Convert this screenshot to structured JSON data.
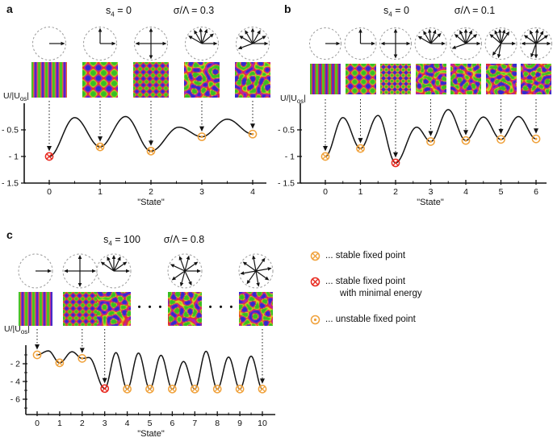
{
  "colors": {
    "stable": "#f0a13a",
    "stable_min": "#e8281e",
    "unstable": "#f0a13a",
    "curve": "#141414",
    "axis": "#141414",
    "mode_arrow": "#141414",
    "dashed_circle": "#999999"
  },
  "legend": {
    "items": [
      {
        "symbol": "stable",
        "label_lines": [
          "... stable fixed point"
        ]
      },
      {
        "symbol": "stable_min",
        "label_lines": [
          "... stable fixed point",
          "with minimal energy"
        ]
      },
      {
        "symbol": "unstable",
        "label_lines": [
          "... unstable fixed point"
        ]
      }
    ]
  },
  "chart_data": [
    {
      "id": "a",
      "panel_label": "a",
      "type": "line",
      "title_s4": {
        "pre": "s",
        "sub": "4",
        "post": " = 0"
      },
      "title_sigma": "σ/Λ = 0.3",
      "xlabel": "\"State\"",
      "ylabel": {
        "pre": "U/|U",
        "sub": "os",
        "post": "|"
      },
      "x_states": [
        0,
        1,
        2,
        3,
        4
      ],
      "ylim": [
        -1.5,
        0
      ],
      "yticks": [
        {
          "value": -0.5,
          "label": "- 0.5"
        },
        {
          "value": -1,
          "label": "- 1"
        },
        {
          "value": -1.5,
          "label": "- 1.5"
        }
      ],
      "extrema": [
        [
          0,
          -1.0
        ],
        [
          0.5,
          -0.27
        ],
        [
          1,
          -0.82
        ],
        [
          1.5,
          -0.25
        ],
        [
          2,
          -0.9
        ],
        [
          2.55,
          -0.45
        ],
        [
          3,
          -0.63
        ],
        [
          3.5,
          -0.3
        ],
        [
          4,
          -0.58
        ]
      ],
      "minima": [
        -1.0,
        -0.82,
        -0.9,
        -0.63,
        -0.58
      ],
      "markers": [
        {
          "state": 0,
          "type": "stable_min"
        },
        {
          "state": 1,
          "type": "stable"
        },
        {
          "state": 2,
          "type": "stable"
        },
        {
          "state": 3,
          "type": "unstable"
        },
        {
          "state": 4,
          "type": "unstable"
        }
      ],
      "arrows_to_states": [
        0,
        1,
        2,
        3,
        4
      ],
      "columns": [
        {
          "modes_deg": [
            0
          ],
          "wavelength": 9,
          "seed": 1,
          "pattern": "stripes"
        },
        {
          "modes_deg": [
            90,
            0
          ],
          "wavelength": 13,
          "seed": 2,
          "pattern": "squares"
        },
        {
          "modes_deg": [
            0,
            90,
            180,
            270
          ],
          "wavelength": 8,
          "seed": 3,
          "pattern": "squares-fine"
        },
        {
          "modes_deg": [
            0,
            40,
            70,
            95,
            120,
            150
          ],
          "wavelength": 10,
          "seed": 4,
          "pattern": "quasipattern"
        },
        {
          "modes_deg": [
            0,
            30,
            60,
            90,
            120,
            150,
            200
          ],
          "wavelength": 10,
          "seed": 5,
          "pattern": "quasipattern"
        }
      ]
    },
    {
      "id": "b",
      "panel_label": "b",
      "type": "line",
      "title_s4": {
        "pre": "s",
        "sub": "4",
        "post": " = 0"
      },
      "title_sigma": "σ/Λ = 0.1",
      "xlabel": "\"State\"",
      "ylabel": {
        "pre": "U/|U",
        "sub": "os",
        "post": "|"
      },
      "x_states": [
        0,
        1,
        2,
        3,
        4,
        5,
        6
      ],
      "ylim": [
        -1.5,
        0
      ],
      "yticks": [
        {
          "value": -0.5,
          "label": "- 0.5"
        },
        {
          "value": -1,
          "label": "- 1"
        },
        {
          "value": -1.5,
          "label": "- 1.5"
        }
      ],
      "extrema": [
        [
          0,
          -1.0
        ],
        [
          0.5,
          -0.27
        ],
        [
          1,
          -0.85
        ],
        [
          1.5,
          -0.23
        ],
        [
          2,
          -1.12
        ],
        [
          2.6,
          -0.45
        ],
        [
          3,
          -0.72
        ],
        [
          3.5,
          -0.12
        ],
        [
          4,
          -0.7
        ],
        [
          4.5,
          -0.26
        ],
        [
          5,
          -0.68
        ],
        [
          5.5,
          -0.25
        ],
        [
          6,
          -0.67
        ]
      ],
      "minima": [
        -1.0,
        -0.85,
        -1.12,
        -0.72,
        -0.7,
        -0.68,
        -0.67
      ],
      "markers": [
        {
          "state": 0,
          "type": "stable"
        },
        {
          "state": 1,
          "type": "stable"
        },
        {
          "state": 2,
          "type": "stable_min"
        },
        {
          "state": 3,
          "type": "unstable"
        },
        {
          "state": 4,
          "type": "unstable"
        },
        {
          "state": 5,
          "type": "unstable"
        },
        {
          "state": 6,
          "type": "unstable"
        }
      ],
      "arrows_to_states": [
        0,
        1,
        2,
        3,
        4,
        5,
        6
      ],
      "columns": [
        {
          "modes_deg": [
            0
          ],
          "wavelength": 8,
          "seed": 1,
          "pattern": "stripes"
        },
        {
          "modes_deg": [
            90,
            0
          ],
          "wavelength": 11,
          "seed": 2,
          "pattern": "squares"
        },
        {
          "modes_deg": [
            0,
            90,
            180,
            270
          ],
          "wavelength": 7,
          "seed": 3,
          "pattern": "squares-fine"
        },
        {
          "modes_deg": [
            0,
            45,
            70,
            95,
            120,
            150
          ],
          "wavelength": 9,
          "seed": 6,
          "pattern": "quasipattern"
        },
        {
          "modes_deg": [
            0,
            40,
            65,
            90,
            115,
            140,
            200
          ],
          "wavelength": 9,
          "seed": 7,
          "pattern": "quasipattern"
        },
        {
          "modes_deg": [
            0,
            55,
            75,
            95,
            115,
            140,
            235,
            260
          ],
          "wavelength": 9,
          "seed": 8,
          "pattern": "quasipattern"
        },
        {
          "modes_deg": [
            0,
            35,
            60,
            85,
            115,
            145,
            180,
            250,
            270
          ],
          "wavelength": 9,
          "seed": 9,
          "pattern": "quasipattern"
        }
      ]
    },
    {
      "id": "c",
      "panel_label": "c",
      "type": "line",
      "title_s4": {
        "pre": "s",
        "sub": "4",
        "post": " = 100"
      },
      "title_sigma": "σ/Λ = 0.8",
      "xlabel": "\"State\"",
      "ylabel": {
        "pre": "U/|U",
        "sub": "os",
        "post": "|"
      },
      "dots": "• • •",
      "x_states": [
        0,
        1,
        2,
        3,
        4,
        5,
        6,
        7,
        8,
        9,
        10
      ],
      "ylim": [
        -7.7,
        0
      ],
      "yticks": [
        {
          "value": -2,
          "label": "- 2"
        },
        {
          "value": -4,
          "label": "- 4"
        },
        {
          "value": -6,
          "label": "- 6"
        }
      ],
      "extrema": [
        [
          0,
          -1.0
        ],
        [
          0.5,
          -0.55
        ],
        [
          1,
          -1.9
        ],
        [
          1.55,
          -0.65
        ],
        [
          2,
          -1.4
        ],
        [
          2.3,
          -1.3
        ],
        [
          3,
          -4.8
        ],
        [
          3.5,
          -0.75
        ],
        [
          4,
          -4.85
        ],
        [
          4.5,
          -0.8
        ],
        [
          5,
          -4.85
        ],
        [
          5.5,
          -1.05
        ],
        [
          6,
          -4.85
        ],
        [
          6.5,
          -1.75
        ],
        [
          7,
          -4.85
        ],
        [
          7.5,
          -0.6
        ],
        [
          8,
          -4.85
        ],
        [
          8.5,
          -1.25
        ],
        [
          9,
          -4.85
        ],
        [
          9.5,
          -1.15
        ],
        [
          10,
          -4.85
        ]
      ],
      "minima": [
        -1.0,
        -1.9,
        -1.4,
        -4.8,
        -4.85,
        -4.85,
        -4.85,
        -4.85,
        -4.85,
        -4.85,
        -4.85
      ],
      "markers": [
        {
          "state": 0,
          "type": "unstable"
        },
        {
          "state": 1,
          "type": "stable"
        },
        {
          "state": 2,
          "type": "unstable"
        },
        {
          "state": 3,
          "type": "stable_min"
        },
        {
          "state": 4,
          "type": "stable"
        },
        {
          "state": 5,
          "type": "stable"
        },
        {
          "state": 6,
          "type": "stable"
        },
        {
          "state": 7,
          "type": "stable"
        },
        {
          "state": 8,
          "type": "stable"
        },
        {
          "state": 9,
          "type": "stable"
        },
        {
          "state": 10,
          "type": "stable"
        }
      ],
      "arrows_to_states": [
        0,
        2,
        3,
        10
      ],
      "columns": [
        {
          "modes_deg": [
            0
          ],
          "wavelength": 9,
          "seed": 1,
          "pattern": "stripes"
        },
        {
          "modes_deg": [
            0,
            90,
            180,
            270
          ],
          "wavelength": 8,
          "seed": 3,
          "pattern": "squares-fine"
        },
        {
          "modes_deg": [
            0,
            35,
            65,
            90,
            115,
            145
          ],
          "wavelength": 10,
          "seed": 10,
          "pattern": "quasipattern"
        },
        {
          "modes_deg": [
            0,
            35,
            75,
            110,
            155,
            215,
            255,
            295
          ],
          "wavelength": 10,
          "seed": 11,
          "pattern": "quasipattern"
        },
        {
          "modes_deg": [
            10,
            55,
            100,
            145,
            190,
            235,
            280,
            325
          ],
          "wavelength": 10,
          "seed": 12,
          "pattern": "quasipattern"
        }
      ]
    }
  ]
}
